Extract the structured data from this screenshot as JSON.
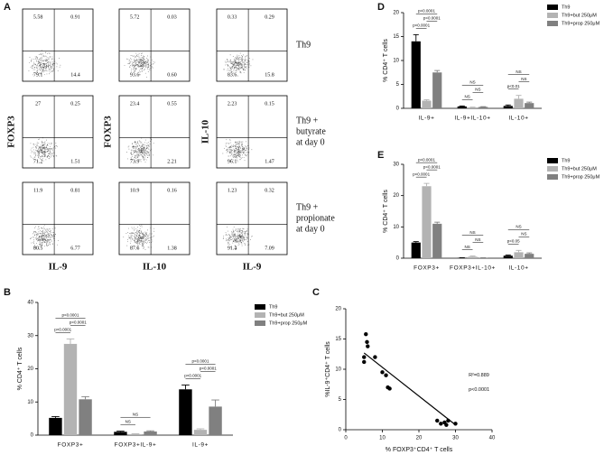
{
  "panel_labels": [
    "A",
    "B",
    "C",
    "D",
    "E"
  ],
  "flow_panel": {
    "columns": [
      {
        "y_label": "FOXP3",
        "x_label": "IL-9"
      },
      {
        "y_label": "FOXP3",
        "x_label": "IL-10"
      },
      {
        "y_label": "IL-10",
        "x_label": "IL-9"
      }
    ],
    "row_labels": [
      [
        "Th9"
      ],
      [
        "Th9 +",
        "butyrate",
        "at day 0"
      ],
      [
        "Th9 +",
        "propionate",
        "at day 0"
      ]
    ],
    "plots": [
      [
        [
          "5.58",
          "0.91",
          "79.1",
          "14.4"
        ],
        [
          "5.72",
          "0.03",
          "93.6",
          "0.60"
        ],
        [
          "0.33",
          "0.29",
          "83.6",
          "15.8"
        ]
      ],
      [
        [
          "27",
          "0.25",
          "71.2",
          "1.51"
        ],
        [
          "23.4",
          "0.55",
          "73.9",
          "2.21"
        ],
        [
          "2.23",
          "0.15",
          "96.1",
          "1.47"
        ]
      ],
      [
        [
          "11.9",
          "0.81",
          "80.5",
          "6.77"
        ],
        [
          "10.9",
          "0.16",
          "87.6",
          "1.38"
        ],
        [
          "1.23",
          "0.32",
          "91.4",
          "7.09"
        ]
      ]
    ]
  },
  "chart_data": [
    {
      "type": "bar",
      "ylabel": "% CD4⁺ T cells",
      "categories": [
        "FOXP3+",
        "FOXP3+IL-9+",
        "IL-9+"
      ],
      "series": [
        {
          "name": "Th9",
          "color": "#000000",
          "values": [
            5.2,
            1.0,
            13.8
          ],
          "errors": [
            0.4,
            0.2,
            1.3
          ]
        },
        {
          "name": "Th9+but 250μM",
          "color": "#b3b3b3",
          "values": [
            27.5,
            0.3,
            1.6
          ],
          "errors": [
            1.5,
            0.1,
            0.3
          ]
        },
        {
          "name": "Th9+prop 250μM",
          "color": "#808080",
          "values": [
            10.8,
            1.1,
            8.6
          ],
          "errors": [
            0.8,
            0.2,
            2.0
          ]
        }
      ],
      "ylim": [
        0,
        40
      ],
      "yticks": [
        0,
        10,
        20,
        30,
        40
      ],
      "brackets": [
        {
          "category": 0,
          "series": [
            0,
            1
          ],
          "label": "p<0.0001"
        },
        {
          "category": 0,
          "series": [
            1,
            2
          ],
          "label": "p<0.0001"
        },
        {
          "category": 0,
          "series": [
            0,
            2
          ],
          "label": "p<0.0001"
        },
        {
          "category": 1,
          "series": [
            0,
            1
          ],
          "label": "NS"
        },
        {
          "category": 1,
          "series": [
            0,
            2
          ],
          "label": "NS"
        },
        {
          "category": 2,
          "series": [
            0,
            1
          ],
          "label": "p<0.0001"
        },
        {
          "category": 2,
          "series": [
            1,
            2
          ],
          "label": "p<0.0001"
        },
        {
          "category": 2,
          "series": [
            0,
            2
          ],
          "label": "p<0.0001"
        }
      ]
    },
    {
      "type": "bar",
      "ylabel": "% CD4⁺ T cells",
      "categories": [
        "IL-9+",
        "IL-9+IL-10+",
        "IL-10+"
      ],
      "series": [
        {
          "name": "Th9",
          "color": "#000000",
          "values": [
            14.0,
            0.4,
            0.5
          ],
          "errors": [
            1.4,
            0.1,
            0.2
          ]
        },
        {
          "name": "Th9+but 250μM",
          "color": "#b3b3b3",
          "values": [
            1.6,
            0.2,
            2.0
          ],
          "errors": [
            0.2,
            0.05,
            0.7
          ]
        },
        {
          "name": "Th9+prop 250μM",
          "color": "#808080",
          "values": [
            7.5,
            0.3,
            1.1
          ],
          "errors": [
            0.4,
            0.05,
            0.2
          ]
        }
      ],
      "ylim": [
        0,
        20
      ],
      "yticks": [
        0,
        5,
        10,
        15,
        20
      ],
      "brackets": [
        {
          "category": 0,
          "series": [
            0,
            1
          ],
          "label": "p<0.0001"
        },
        {
          "category": 0,
          "series": [
            1,
            2
          ],
          "label": "p<0.0001"
        },
        {
          "category": 0,
          "series": [
            0,
            2
          ],
          "label": "p<0.0001"
        },
        {
          "category": 1,
          "series": [
            0,
            1
          ],
          "label": "NS"
        },
        {
          "category": 1,
          "series": [
            1,
            2
          ],
          "label": "NS"
        },
        {
          "category": 1,
          "series": [
            0,
            2
          ],
          "label": "NS"
        },
        {
          "category": 2,
          "series": [
            0,
            1
          ],
          "label": "p<0.01"
        },
        {
          "category": 2,
          "series": [
            1,
            2
          ],
          "label": "NS"
        },
        {
          "category": 2,
          "series": [
            0,
            2
          ],
          "label": "NS"
        }
      ]
    },
    {
      "type": "bar",
      "ylabel": "% CD4⁺ T cells",
      "categories": [
        "FOXP3+",
        "FOXP3+IL-10+",
        "IL-10+"
      ],
      "series": [
        {
          "name": "Th9",
          "color": "#000000",
          "values": [
            5.0,
            0.1,
            0.8
          ],
          "errors": [
            0.3,
            0.05,
            0.2
          ]
        },
        {
          "name": "Th9+but 250μM",
          "color": "#b3b3b3",
          "values": [
            23.0,
            0.5,
            1.9
          ],
          "errors": [
            0.9,
            0.2,
            0.6
          ]
        },
        {
          "name": "Th9+prop 250μM",
          "color": "#808080",
          "values": [
            11.0,
            0.1,
            1.4
          ],
          "errors": [
            0.5,
            0.05,
            0.3
          ]
        }
      ],
      "ylim": [
        0,
        30
      ],
      "yticks": [
        0,
        10,
        20,
        30
      ],
      "brackets": [
        {
          "category": 0,
          "series": [
            0,
            1
          ],
          "label": "p<0.0001"
        },
        {
          "category": 0,
          "series": [
            1,
            2
          ],
          "label": "p<0.0001"
        },
        {
          "category": 0,
          "series": [
            0,
            2
          ],
          "label": "p<0.0001"
        },
        {
          "category": 1,
          "series": [
            0,
            1
          ],
          "label": "NS"
        },
        {
          "category": 1,
          "series": [
            1,
            2
          ],
          "label": "NS"
        },
        {
          "category": 1,
          "series": [
            0,
            2
          ],
          "label": "NS"
        },
        {
          "category": 2,
          "series": [
            0,
            1
          ],
          "label": "p<0.05"
        },
        {
          "category": 2,
          "series": [
            1,
            2
          ],
          "label": "NS"
        },
        {
          "category": 2,
          "series": [
            0,
            2
          ],
          "label": "NS"
        }
      ]
    },
    {
      "type": "scatter",
      "xlabel": "% FOXP3⁺CD4⁺ T cells",
      "ylabel": "%IL-9⁺CD4⁺ T cells",
      "x": [
        5,
        5.5,
        5.8,
        6,
        5,
        8,
        10,
        11,
        11.5,
        12,
        25,
        26,
        27,
        27.5,
        28,
        30
      ],
      "y": [
        12,
        15.8,
        14.5,
        13.8,
        11.2,
        12,
        9.5,
        9,
        7,
        6.8,
        1.5,
        1,
        1.2,
        0.8,
        1.5,
        1
      ],
      "fit": {
        "x": [
          5,
          30
        ],
        "y": [
          12.7,
          0.8
        ]
      },
      "color": "#000000",
      "xlim": [
        0,
        40
      ],
      "xticks": [
        0,
        10,
        20,
        30,
        40
      ],
      "ylim": [
        0,
        20
      ],
      "yticks": [
        0,
        5,
        10,
        15,
        20
      ],
      "annotations": [
        "R²=0.889",
        "p<0.0001"
      ]
    }
  ]
}
